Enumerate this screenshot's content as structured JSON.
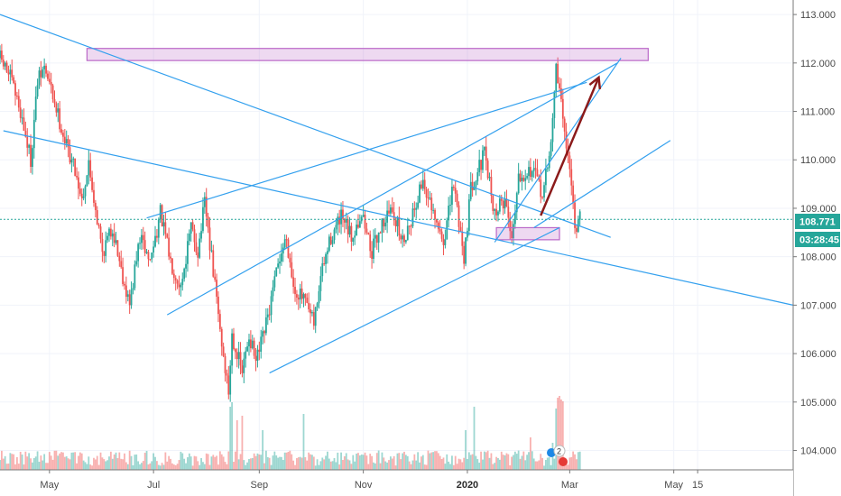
{
  "chart_data": {
    "type": "candlestick",
    "ylim": [
      103.6,
      113.3
    ],
    "y_ticks": [
      104,
      105,
      106,
      107,
      108,
      109,
      110,
      111,
      112,
      113
    ],
    "y_tick_labels": [
      "104.000",
      "105.000",
      "106.000",
      "107.000",
      "108.000",
      "109.000",
      "110.000",
      "111.000",
      "112.000",
      "113.000"
    ],
    "x_ticks": [
      {
        "label": "May",
        "x": 21,
        "bold": false
      },
      {
        "label": "Jul",
        "x": 82,
        "bold": false
      },
      {
        "label": "Sep",
        "x": 144,
        "bold": false
      },
      {
        "label": "Nov",
        "x": 205,
        "bold": false
      },
      {
        "label": "2020",
        "x": 266,
        "bold": true
      },
      {
        "label": "Mar",
        "x": 326,
        "bold": false
      },
      {
        "label": "May",
        "x": 387,
        "bold": false
      },
      {
        "label": "15",
        "x": 401,
        "bold": false
      }
    ],
    "xlim": [
      -8,
      457
    ],
    "price_label": "108.771",
    "countdown_label": "03:28:45",
    "last_price": 108.771,
    "badge_label": "2",
    "keypoints": [
      [
        -8,
        112.1
      ],
      [
        -2,
        111.7
      ],
      [
        4,
        111.0
      ],
      [
        10,
        110.0
      ],
      [
        14,
        111.6
      ],
      [
        18,
        111.9
      ],
      [
        24,
        111.2
      ],
      [
        30,
        110.4
      ],
      [
        36,
        109.8
      ],
      [
        40,
        109.2
      ],
      [
        44,
        109.9
      ],
      [
        48,
        109.0
      ],
      [
        52,
        108.1
      ],
      [
        58,
        108.6
      ],
      [
        64,
        107.6
      ],
      [
        68,
        107.0
      ],
      [
        74,
        108.4
      ],
      [
        80,
        107.9
      ],
      [
        86,
        108.9
      ],
      [
        92,
        107.9
      ],
      [
        98,
        107.4
      ],
      [
        104,
        108.6
      ],
      [
        108,
        108.1
      ],
      [
        112,
        109.1
      ],
      [
        118,
        107.4
      ],
      [
        122,
        106.2
      ],
      [
        126,
        105.2
      ],
      [
        128,
        106.4
      ],
      [
        134,
        105.6
      ],
      [
        138,
        106.4
      ],
      [
        142,
        105.8
      ],
      [
        146,
        106.3
      ],
      [
        150,
        106.9
      ],
      [
        156,
        108.0
      ],
      [
        160,
        108.4
      ],
      [
        164,
        107.4
      ],
      [
        170,
        107.1
      ],
      [
        176,
        106.6
      ],
      [
        180,
        107.6
      ],
      [
        186,
        108.4
      ],
      [
        192,
        108.8
      ],
      [
        198,
        108.4
      ],
      [
        204,
        108.9
      ],
      [
        210,
        108.1
      ],
      [
        216,
        108.7
      ],
      [
        222,
        109.0
      ],
      [
        228,
        108.3
      ],
      [
        234,
        108.9
      ],
      [
        240,
        109.6
      ],
      [
        246,
        108.8
      ],
      [
        252,
        108.3
      ],
      [
        258,
        109.5
      ],
      [
        264,
        108.0
      ],
      [
        268,
        109.4
      ],
      [
        272,
        109.8
      ],
      [
        276,
        110.1
      ],
      [
        282,
        108.9
      ],
      [
        288,
        109.2
      ],
      [
        292,
        108.4
      ],
      [
        296,
        109.7
      ],
      [
        304,
        109.8
      ],
      [
        310,
        109.3
      ],
      [
        314,
        110.0
      ],
      [
        318,
        111.9
      ],
      [
        322,
        110.9
      ],
      [
        326,
        109.8
      ],
      [
        330,
        108.4
      ],
      [
        332,
        108.8
      ]
    ],
    "volume": {
      "base_height": 13,
      "spikes": [
        {
          "x": 127,
          "h": 70
        },
        {
          "x": 128,
          "h": 75
        },
        {
          "x": 131,
          "h": 55
        },
        {
          "x": 134,
          "h": 60
        },
        {
          "x": 146,
          "h": 44
        },
        {
          "x": 170,
          "h": 62
        },
        {
          "x": 265,
          "h": 44
        },
        {
          "x": 270,
          "h": 70
        },
        {
          "x": 303,
          "h": 36
        },
        {
          "x": 316,
          "h": 30
        },
        {
          "x": 318,
          "h": 68
        },
        {
          "x": 319,
          "h": 80
        },
        {
          "x": 320,
          "h": 82
        },
        {
          "x": 321,
          "h": 78
        },
        {
          "x": 322,
          "h": 76
        }
      ]
    },
    "drawings": {
      "lines": [
        {
          "x1": -8,
          "y1": 113.0,
          "x2": 350,
          "y2": 108.4,
          "color": "#33a0ee"
        },
        {
          "x1": -6,
          "y1": 110.6,
          "x2": 457,
          "y2": 107.0,
          "color": "#33a0ee"
        },
        {
          "x1": 78,
          "y1": 108.8,
          "x2": 336,
          "y2": 111.6,
          "color": "#33a0ee"
        },
        {
          "x1": 90,
          "y1": 106.8,
          "x2": 354,
          "y2": 112.0,
          "color": "#33a0ee"
        },
        {
          "x1": 150,
          "y1": 105.6,
          "x2": 320,
          "y2": 108.6,
          "color": "#33a0ee"
        },
        {
          "x1": 282,
          "y1": 108.3,
          "x2": 356,
          "y2": 112.1,
          "color": "#33a0ee"
        },
        {
          "x1": 305,
          "y1": 108.6,
          "x2": 385,
          "y2": 110.4,
          "color": "#33a0ee"
        }
      ],
      "zones": [
        {
          "x1": 43,
          "y1": 112.3,
          "x2": 372,
          "y2": 112.05,
          "color": "#ba68c8"
        },
        {
          "x1": 283,
          "y1": 108.6,
          "x2": 320,
          "y2": 108.35,
          "color": "#ba68c8"
        }
      ],
      "arrow": {
        "x1": 309,
        "y1": 108.85,
        "x2": 343,
        "y2": 111.7,
        "color": "#8b1a1a"
      }
    }
  }
}
